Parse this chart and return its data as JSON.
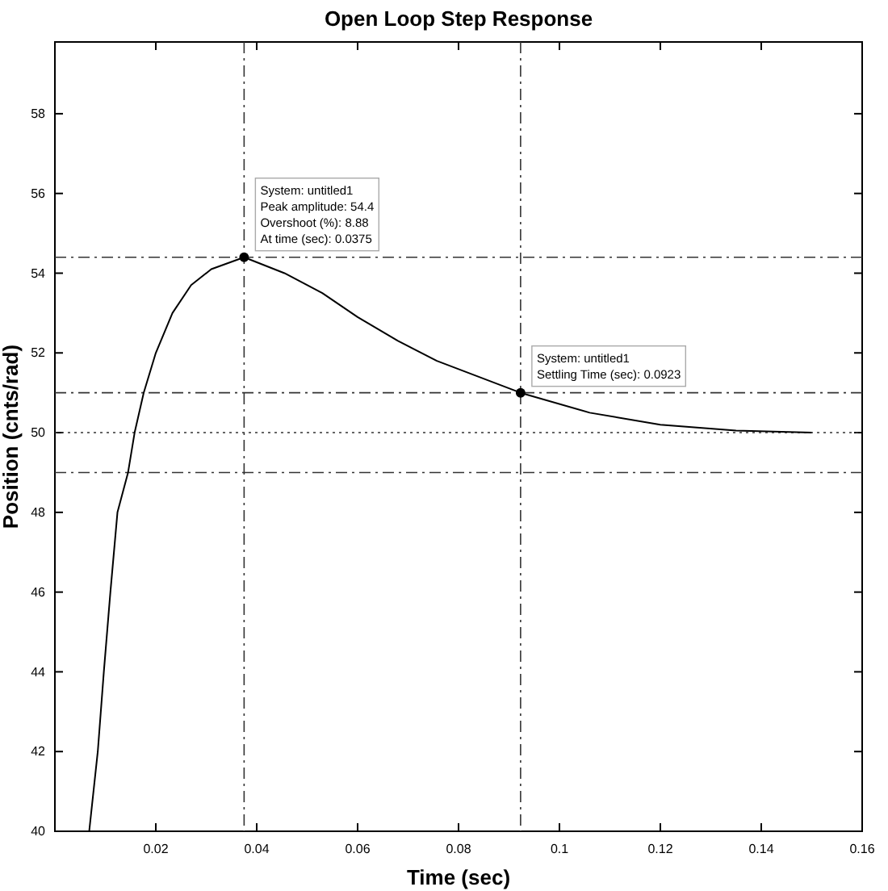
{
  "chart_data": {
    "type": "line",
    "title": "Open Loop Step Response",
    "xlabel": "Time (sec)",
    "ylabel": "Position (cnts/rad)",
    "xlim": [
      0,
      0.16
    ],
    "ylim": [
      40,
      59.8
    ],
    "xticks": [
      0.02,
      0.04,
      0.06,
      0.08,
      0.1,
      0.12,
      0.14,
      0.16
    ],
    "yticks": [
      40,
      42,
      44,
      46,
      48,
      50,
      52,
      54,
      56,
      58
    ],
    "grid": false,
    "series": [
      {
        "color": "#000000",
        "line_style": "solid",
        "marker": "none",
        "x": [
          0.0068,
          0.0085,
          0.0097,
          0.011,
          0.0124,
          0.0145,
          0.0158,
          0.0176,
          0.02,
          0.0233,
          0.027,
          0.031,
          0.0375,
          0.0455,
          0.053,
          0.06,
          0.068,
          0.0757,
          0.0923,
          0.106,
          0.12,
          0.135,
          0.15
        ],
        "values": [
          40,
          42,
          44,
          46,
          48,
          49,
          50,
          51,
          52,
          53,
          53.7,
          54.1,
          54.4,
          54.0,
          53.5,
          52.9,
          52.3,
          51.8,
          51.0,
          50.5,
          50.2,
          50.05,
          50.0
        ]
      },
      {
        "type": "scatter",
        "color": "#000000",
        "marker": "circle",
        "x": [
          0.0375,
          0.0923
        ],
        "values": [
          54.4,
          51.0
        ]
      }
    ],
    "ref_lines": [
      {
        "axis": "y",
        "value": 54.4,
        "line_style": "dashdot",
        "color": "#333333"
      },
      {
        "axis": "x",
        "value": 0.0375,
        "line_style": "dashdot",
        "color": "#333333"
      },
      {
        "axis": "x",
        "value": 0.0923,
        "line_style": "dashdot",
        "color": "#333333"
      },
      {
        "axis": "y",
        "value": 51,
        "line_style": "dashdot",
        "color": "#333333"
      },
      {
        "axis": "y",
        "value": 49,
        "line_style": "dashdot",
        "color": "#333333"
      },
      {
        "axis": "y",
        "value": 50,
        "line_style": "dotted",
        "color": "#333333"
      }
    ],
    "annotations": [
      {
        "text": "System: untitled1\nPeak amplitude: 54.4\nOvershoot (%): 8.88\nAt time (sec): 0.0375",
        "x": 0.0375,
        "y": 54.4
      },
      {
        "text": "System: untitled1\nSettling Time (sec): 0.0923",
        "x": 0.0923,
        "y": 51.0
      }
    ]
  }
}
